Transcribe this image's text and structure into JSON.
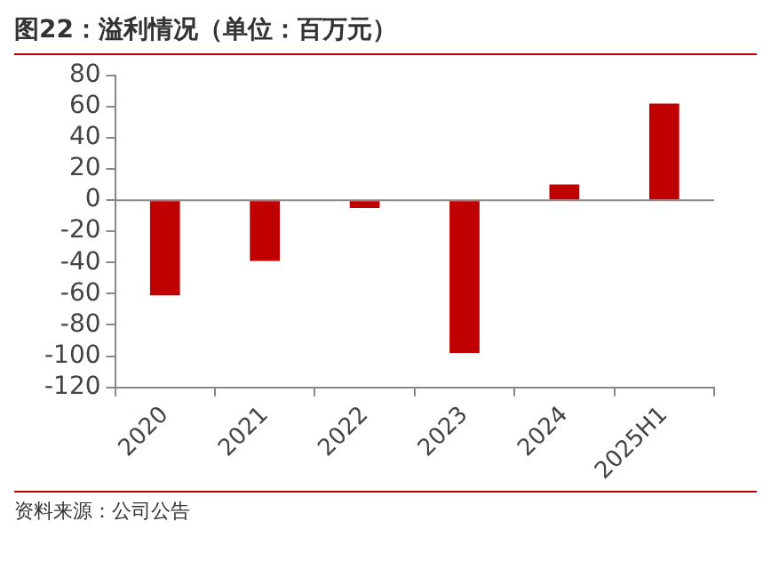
{
  "chart_data": {
    "type": "bar",
    "title": "图22：溢利情况（单位：百万元）",
    "annotations": [
      "资料来源：公司公告"
    ],
    "categories": [
      "2020",
      "2021",
      "2022",
      "2023",
      "2024",
      "2025H1"
    ],
    "values": [
      -61,
      -39,
      -5,
      -98,
      10,
      62
    ],
    "color": "#c00000",
    "ylim": [
      -120,
      80
    ],
    "yticks": [
      -120,
      -100,
      -80,
      -60,
      -40,
      -20,
      0,
      20,
      40,
      60,
      80
    ],
    "grid": false,
    "legend": false,
    "ref_lines": [
      {
        "axis": "y",
        "value": 0,
        "color": "#888888"
      }
    ]
  }
}
